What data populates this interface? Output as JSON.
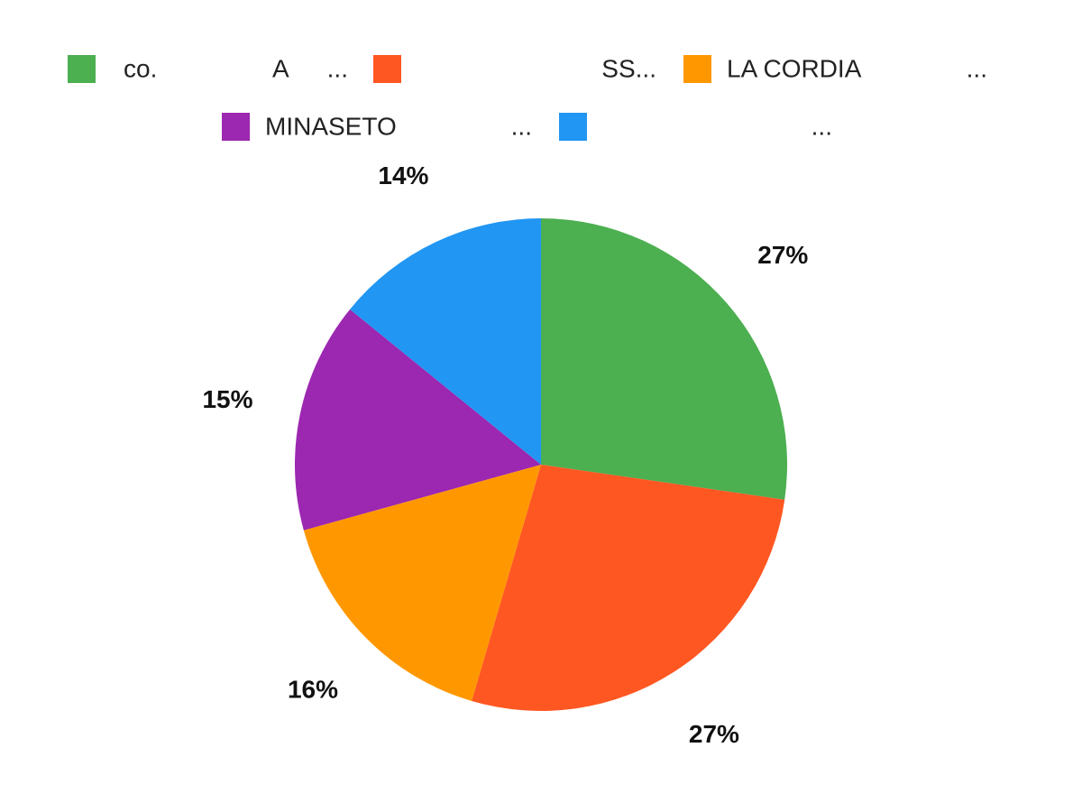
{
  "chart_data": {
    "type": "pie",
    "title": "",
    "legend_position": "top",
    "slices": [
      {
        "label": "co.",
        "label_parts": [
          "co.",
          "A",
          "..."
        ],
        "value": 27,
        "display": "27%",
        "color": "#4CAF50"
      },
      {
        "label": "SS...",
        "label_parts": [
          "SS..."
        ],
        "value": 27,
        "display": "27%",
        "color": "#FF5722"
      },
      {
        "label": "LA CORDIA",
        "label_parts": [
          "LA CORDIA",
          "..."
        ],
        "value": 16,
        "display": "16%",
        "color": "#FF9800"
      },
      {
        "label": "MINASETO",
        "label_parts": [
          "MINASETO",
          "..."
        ],
        "value": 15,
        "display": "15%",
        "color": "#9C27B0"
      },
      {
        "label": "...",
        "label_parts": [
          "..."
        ],
        "value": 14,
        "display": "14%",
        "color": "#2196F3"
      }
    ]
  }
}
